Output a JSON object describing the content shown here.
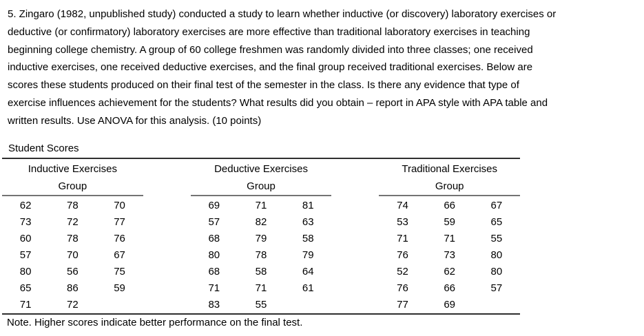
{
  "question": {
    "text": "5. Zingaro (1982, unpublished study) conducted a study to learn whether inductive (or discovery) laboratory exercises or\ndeductive (or confirmatory) laboratory exercises are more effective than traditional laboratory exercises in teaching\nbeginning college chemistry. A group of 60 college freshmen was randomly divided into three classes; one received\ninductive exercises, one received deductive exercises, and the final group received traditional exercises. Below are\nscores these students produced on their final test of the semester in the class. Is there any evidence that type of\nexercise influences achievement for the students? What results did you obtain – report in APA style with APA table and\nwritten results. Use ANOVA for this analysis. (10 points)"
  },
  "table": {
    "title": "Student Scores",
    "note": "Note. Higher scores indicate better performance on the final test.",
    "groups": [
      {
        "header": "Inductive Exercises",
        "subheader": "Group",
        "rows": [
          [
            "62",
            "78",
            "70"
          ],
          [
            "73",
            "72",
            "77"
          ],
          [
            "60",
            "78",
            "76"
          ],
          [
            "57",
            "70",
            "67"
          ],
          [
            "80",
            "56",
            "75"
          ],
          [
            "65",
            "86",
            "59"
          ],
          [
            "71",
            "72",
            ""
          ]
        ]
      },
      {
        "header": "Deductive Exercises",
        "subheader": "Group",
        "rows": [
          [
            "69",
            "71",
            "81"
          ],
          [
            "57",
            "82",
            "63"
          ],
          [
            "68",
            "79",
            "58"
          ],
          [
            "80",
            "78",
            "79"
          ],
          [
            "68",
            "58",
            "64"
          ],
          [
            "71",
            "71",
            "61"
          ],
          [
            "83",
            "55",
            ""
          ]
        ]
      },
      {
        "header": "Traditional Exercises",
        "subheader": "Group",
        "rows": [
          [
            "74",
            "66",
            "67"
          ],
          [
            "53",
            "59",
            "65"
          ],
          [
            "71",
            "71",
            "55"
          ],
          [
            "76",
            "73",
            "80"
          ],
          [
            "52",
            "62",
            "80"
          ],
          [
            "76",
            "66",
            "57"
          ],
          [
            "77",
            "69",
            ""
          ]
        ]
      }
    ]
  },
  "colors": {
    "text": "#000000",
    "background": "#ffffff",
    "rule_dark": "#2e2e2e",
    "rule_gray": "#737373"
  }
}
